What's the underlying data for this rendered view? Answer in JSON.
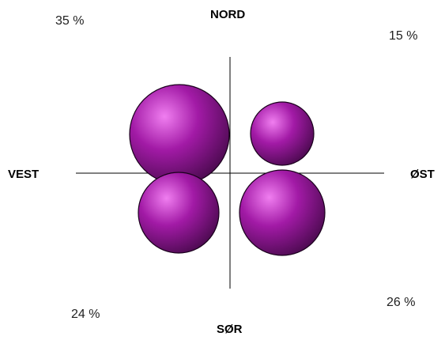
{
  "directions": {
    "north": "NORD",
    "south": "SØR",
    "west": "VEST",
    "east": "ØST"
  },
  "quadrants": [
    {
      "id": "nw",
      "label": "35 %",
      "value": 35
    },
    {
      "id": "ne",
      "label": "15 %",
      "value": 15
    },
    {
      "id": "sw",
      "label": "24 %",
      "value": 24
    },
    {
      "id": "se",
      "label": "26 %",
      "value": 26
    }
  ],
  "colors": {
    "sphere_highlight": "#f07ef0",
    "sphere_mid": "#a21aa6",
    "sphere_shadow": "#4a0a4e",
    "outline": "#1a001c",
    "axis": "#000000"
  }
}
